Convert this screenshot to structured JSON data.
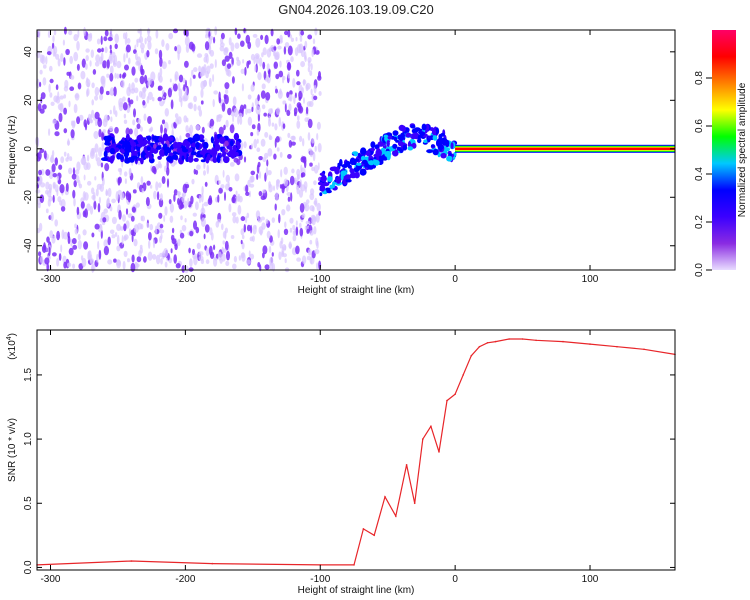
{
  "chart_data": [
    {
      "type": "heatmap",
      "title": "GN04.2026.103.19.09.C20",
      "xlabel": "Height of straight line (km)",
      "ylabel": "Frequency (Hz)",
      "xlim": [
        -310,
        163
      ],
      "ylim": [
        -50,
        49
      ],
      "x_ticks": [
        -300,
        -200,
        -100,
        0,
        100
      ],
      "y_ticks": [
        40,
        20,
        0,
        -20,
        -40
      ],
      "colorbar": {
        "label": "Normalized spectral amplitude",
        "range": [
          0.0,
          1.0
        ],
        "ticks": [
          "0.0",
          "0.2",
          "0.4",
          "0.6",
          "0.8"
        ],
        "colors": [
          "#e8dcff",
          "#8a2be2",
          "#3b00ff",
          "#0000ff",
          "#00c8ff",
          "#00ff00",
          "#ffff00",
          "#ff8000",
          "#ff0000",
          "#ff0066"
        ]
      },
      "grid": false,
      "features": [
        {
          "name": "noise",
          "x_range": [
            -310,
            -100
          ],
          "freq_range": [
            -50,
            49
          ],
          "amplitude": 0.15
        },
        {
          "name": "signal",
          "x_range": [
            -260,
            -160
          ],
          "freq_center": 0,
          "amplitude": 0.3
        },
        {
          "name": "signal",
          "x_range": [
            -100,
            0
          ],
          "freq_start": -15,
          "freq_peak": 5,
          "amplitude": 0.4
        },
        {
          "name": "carrier",
          "x_range": [
            0,
            163
          ],
          "freq_center": 0,
          "amplitude": 1.0
        }
      ]
    },
    {
      "type": "line",
      "xlabel": "Height of straight line (km)",
      "ylabel": "SNR (10 * v/v)",
      "y_multiplier": "(x10",
      "y_multiplier_exp": "4",
      "xlim": [
        -310,
        163
      ],
      "ylim": [
        -0.02,
        1.85
      ],
      "x_ticks": [
        -300,
        -200,
        -100,
        0,
        100
      ],
      "y_ticks": [
        "0.0",
        "0.5",
        "1.0",
        "1.5"
      ],
      "series": [
        {
          "color": "#e8262a",
          "x": [
            -310,
            -240,
            -180,
            -100,
            -75,
            -68,
            -60,
            -52,
            -44,
            -36,
            -30,
            -24,
            -18,
            -12,
            -6,
            0,
            6,
            12,
            18,
            24,
            30,
            40,
            50,
            60,
            80,
            100,
            120,
            140,
            163
          ],
          "y": [
            0.02,
            0.05,
            0.03,
            0.02,
            0.02,
            0.3,
            0.25,
            0.55,
            0.4,
            0.8,
            0.5,
            1.0,
            1.1,
            0.9,
            1.3,
            1.35,
            1.5,
            1.65,
            1.72,
            1.75,
            1.76,
            1.78,
            1.78,
            1.77,
            1.76,
            1.74,
            1.72,
            1.7,
            1.66
          ]
        }
      ]
    }
  ]
}
